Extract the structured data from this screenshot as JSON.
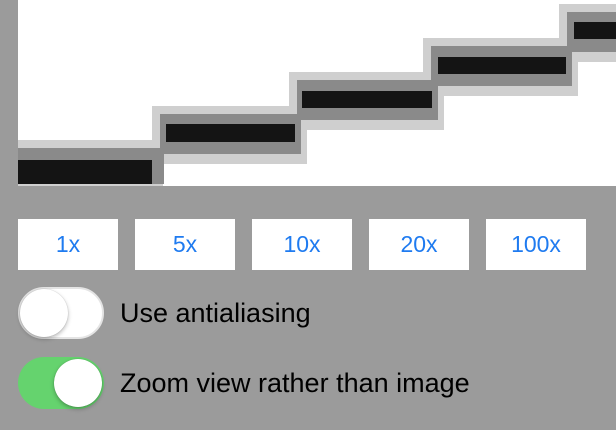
{
  "zoom_buttons": [
    "1x",
    "5x",
    "10x",
    "20x",
    "100x"
  ],
  "toggles": {
    "antialiasing": {
      "label": "Use antialiasing",
      "on": false
    },
    "zoom_view": {
      "label": "Zoom view rather than image",
      "on": true
    }
  },
  "colors": {
    "background": "#9b9b9b",
    "accent_text": "#1f7bf0",
    "switch_on": "#65d36e",
    "stair_stroke": "#141414"
  }
}
